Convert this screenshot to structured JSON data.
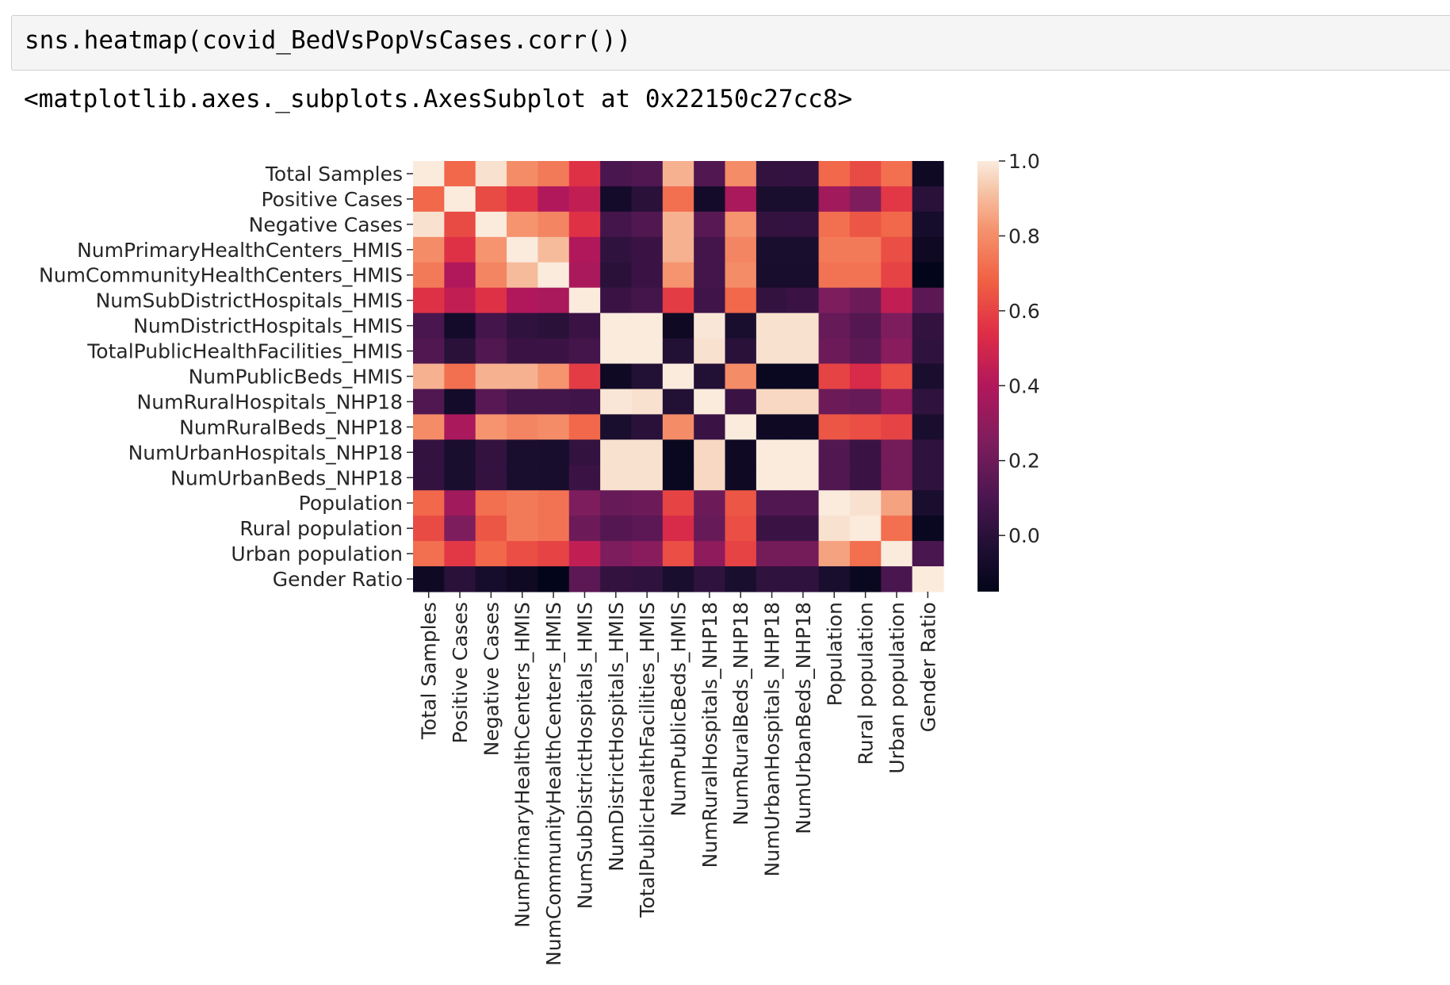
{
  "notebook": {
    "input_code": "sns.heatmap(covid_BedVsPopVsCases.corr())",
    "output_text": "<matplotlib.axes._subplots.AxesSubplot at 0x22150c27cc8>"
  },
  "chart_data": {
    "type": "heatmap",
    "title": "",
    "xlabel": "",
    "ylabel": "",
    "labels": [
      "Total Samples",
      "Positive Cases",
      "Negative Cases",
      "NumPrimaryHealthCenters_HMIS",
      "NumCommunityHealthCenters_HMIS",
      "NumSubDistrictHospitals_HMIS",
      "NumDistrictHospitals_HMIS",
      "TotalPublicHealthFacilities_HMIS",
      "NumPublicBeds_HMIS",
      "NumRuralHospitals_NHP18",
      "NumRuralBeds_NHP18",
      "NumUrbanHospitals_NHP18",
      "NumUrbanBeds_NHP18",
      "Population",
      "Rural population",
      "Urban population",
      "Gender Ratio"
    ],
    "values": [
      [
        1.0,
        0.7,
        0.98,
        0.8,
        0.75,
        0.55,
        0.1,
        0.12,
        0.88,
        0.12,
        0.8,
        0.03,
        0.03,
        0.7,
        0.62,
        0.72,
        -0.1
      ],
      [
        0.7,
        1.0,
        0.62,
        0.55,
        0.4,
        0.45,
        -0.08,
        0.0,
        0.72,
        -0.08,
        0.38,
        -0.05,
        -0.05,
        0.35,
        0.25,
        0.57,
        0.0
      ],
      [
        0.98,
        0.62,
        1.0,
        0.82,
        0.78,
        0.55,
        0.08,
        0.12,
        0.88,
        0.14,
        0.82,
        0.03,
        0.03,
        0.72,
        0.65,
        0.7,
        -0.07
      ],
      [
        0.8,
        0.55,
        0.82,
        1.0,
        0.9,
        0.4,
        0.02,
        0.05,
        0.88,
        0.08,
        0.78,
        -0.05,
        -0.05,
        0.75,
        0.75,
        0.63,
        -0.1
      ],
      [
        0.75,
        0.4,
        0.78,
        0.9,
        1.0,
        0.38,
        0.0,
        0.05,
        0.82,
        0.08,
        0.8,
        -0.06,
        -0.06,
        0.73,
        0.73,
        0.6,
        -0.15
      ],
      [
        0.55,
        0.45,
        0.55,
        0.4,
        0.38,
        1.0,
        0.05,
        0.08,
        0.58,
        0.07,
        0.7,
        0.03,
        0.05,
        0.25,
        0.2,
        0.45,
        0.15
      ],
      [
        0.1,
        -0.08,
        0.08,
        0.02,
        0.0,
        0.05,
        1.0,
        1.0,
        -0.1,
        0.99,
        -0.05,
        0.98,
        0.98,
        0.18,
        0.13,
        0.25,
        0.03
      ],
      [
        0.12,
        0.0,
        0.12,
        0.05,
        0.05,
        0.08,
        1.0,
        1.0,
        -0.02,
        0.98,
        0.0,
        0.98,
        0.98,
        0.2,
        0.15,
        0.28,
        0.02
      ],
      [
        0.88,
        0.72,
        0.88,
        0.88,
        0.82,
        0.58,
        -0.1,
        -0.02,
        1.0,
        -0.02,
        0.8,
        -0.12,
        -0.12,
        0.6,
        0.52,
        0.63,
        -0.05
      ],
      [
        0.12,
        -0.08,
        0.14,
        0.08,
        0.08,
        0.07,
        0.99,
        0.98,
        -0.02,
        1.0,
        0.05,
        0.96,
        0.96,
        0.2,
        0.18,
        0.3,
        0.02
      ],
      [
        0.8,
        0.38,
        0.82,
        0.78,
        0.8,
        0.7,
        -0.05,
        0.0,
        0.8,
        0.05,
        1.0,
        -0.1,
        -0.1,
        0.65,
        0.63,
        0.6,
        -0.05
      ],
      [
        0.03,
        -0.05,
        0.03,
        -0.05,
        -0.06,
        0.03,
        0.98,
        0.98,
        -0.12,
        0.96,
        -0.1,
        1.0,
        1.0,
        0.12,
        0.05,
        0.22,
        0.02
      ],
      [
        0.03,
        -0.05,
        0.03,
        -0.05,
        -0.06,
        0.05,
        0.98,
        0.98,
        -0.12,
        0.96,
        -0.1,
        1.0,
        1.0,
        0.12,
        0.05,
        0.22,
        0.02
      ],
      [
        0.7,
        0.35,
        0.72,
        0.75,
        0.73,
        0.25,
        0.18,
        0.2,
        0.6,
        0.2,
        0.65,
        0.12,
        0.12,
        1.0,
        0.98,
        0.85,
        -0.05
      ],
      [
        0.62,
        0.25,
        0.65,
        0.75,
        0.73,
        0.2,
        0.13,
        0.15,
        0.52,
        0.18,
        0.63,
        0.05,
        0.05,
        0.98,
        1.0,
        0.72,
        -0.12
      ],
      [
        0.72,
        0.57,
        0.7,
        0.63,
        0.6,
        0.45,
        0.25,
        0.28,
        0.63,
        0.3,
        0.6,
        0.22,
        0.22,
        0.85,
        0.72,
        1.0,
        0.1
      ],
      [
        -0.1,
        0.0,
        -0.07,
        -0.1,
        -0.15,
        0.15,
        0.03,
        0.02,
        -0.05,
        0.02,
        -0.05,
        0.02,
        0.02,
        -0.05,
        -0.12,
        0.1,
        1.0
      ]
    ],
    "vmin": -0.15,
    "vmax": 1.0,
    "colorbar_ticks": [
      "0.0",
      "0.2",
      "0.4",
      "0.6",
      "0.8",
      "1.0"
    ],
    "colormap": "rocket",
    "grid": false,
    "legend": "colorbar-right"
  }
}
